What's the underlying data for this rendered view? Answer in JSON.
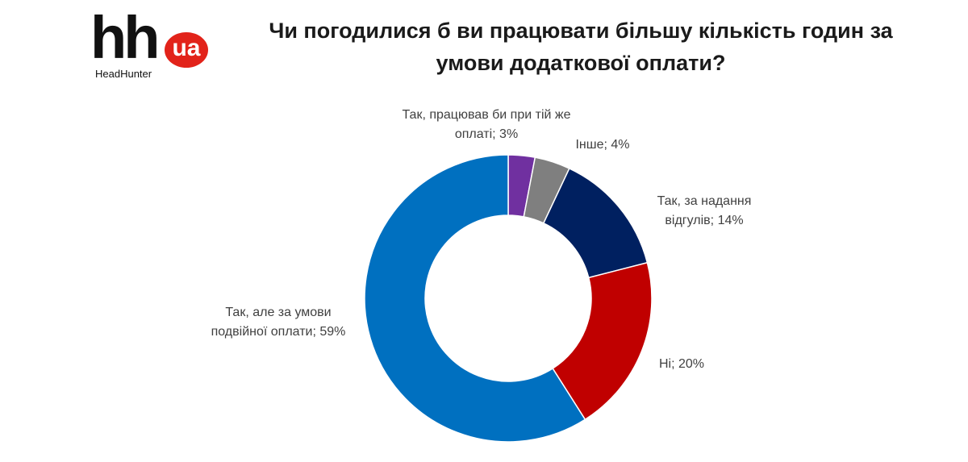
{
  "logo": {
    "main": "hh",
    "badge": "ua",
    "brand": "HeadHunter"
  },
  "chart_data": {
    "type": "donut",
    "title": "Чи погодилися б ви працювати більшу кількість годин за умови додаткової оплати?",
    "categories": [
      "Так, працював би при тій же оплаті; 3%",
      "Інше; 4%",
      "Так, за надання відгулів; 14%",
      "Ні; 20%",
      "Так, але за умови подвійної оплати; 59%"
    ],
    "values": [
      3,
      4,
      14,
      20,
      59
    ],
    "colors": [
      "#7030a0",
      "#7f7f7f",
      "#002060",
      "#c00000",
      "#0070c0"
    ]
  }
}
